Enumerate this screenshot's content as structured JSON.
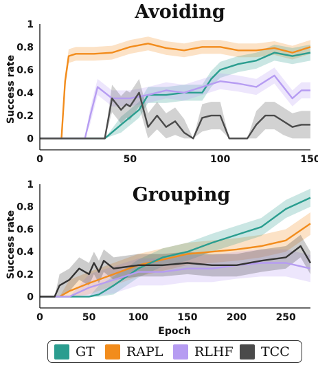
{
  "chart_data": [
    {
      "type": "line",
      "title": "Avoiding",
      "xlabel": "",
      "ylabel": "Success rate",
      "xlim": [
        0,
        150
      ],
      "ylim": [
        -0.1,
        1.0
      ],
      "xticks": [
        "0",
        "50",
        "100",
        "150"
      ],
      "yticks": [
        "0",
        "0.2",
        "0.4",
        "0.6",
        "0.8",
        "1"
      ],
      "grid": false,
      "series": [
        {
          "name": "RAPL",
          "color": "#f28c1c",
          "band": 0.06,
          "x": [
            0,
            12,
            14,
            16,
            20,
            30,
            40,
            50,
            60,
            70,
            80,
            90,
            100,
            110,
            120,
            130,
            140,
            150
          ],
          "y": [
            0,
            0,
            0.5,
            0.72,
            0.74,
            0.74,
            0.75,
            0.8,
            0.83,
            0.79,
            0.77,
            0.8,
            0.8,
            0.77,
            0.77,
            0.79,
            0.75,
            0.8
          ]
        },
        {
          "name": "GT",
          "color": "#2a9d8f",
          "band": 0.07,
          "x": [
            0,
            30,
            32,
            36,
            45,
            55,
            60,
            70,
            80,
            90,
            95,
            100,
            110,
            120,
            130,
            140,
            150
          ],
          "y": [
            0,
            0,
            0,
            0,
            0.12,
            0.25,
            0.38,
            0.38,
            0.4,
            0.4,
            0.52,
            0.6,
            0.65,
            0.68,
            0.75,
            0.72,
            0.75
          ]
        },
        {
          "name": "RLHF",
          "color": "#b69cf2",
          "band": 0.07,
          "x": [
            0,
            25,
            28,
            32,
            40,
            50,
            60,
            70,
            80,
            90,
            100,
            110,
            120,
            130,
            140,
            145,
            150
          ],
          "y": [
            0,
            0,
            0.2,
            0.45,
            0.35,
            0.35,
            0.38,
            0.42,
            0.4,
            0.45,
            0.5,
            0.48,
            0.45,
            0.55,
            0.35,
            0.42,
            0.42
          ]
        },
        {
          "name": "TCC",
          "color": "#4a4a4a",
          "band": 0.12,
          "x": [
            0,
            33,
            36,
            40,
            45,
            48,
            50,
            55,
            60,
            65,
            70,
            75,
            80,
            85,
            90,
            95,
            100,
            105,
            110,
            115,
            120,
            125,
            130,
            135,
            140,
            145,
            150
          ],
          "y": [
            0,
            0,
            0,
            0.35,
            0.25,
            0.3,
            0.28,
            0.4,
            0.1,
            0.2,
            0.1,
            0.15,
            0.05,
            0.0,
            0.18,
            0.2,
            0.2,
            0.0,
            0.0,
            0.0,
            0.12,
            0.2,
            0.2,
            0.15,
            0.1,
            0.12,
            0.12
          ]
        }
      ]
    },
    {
      "type": "line",
      "title": "Grouping",
      "xlabel": "Epoch",
      "ylabel": "Success rate",
      "xlim": [
        0,
        275
      ],
      "ylim": [
        -0.1,
        1.0
      ],
      "xticks": [
        "0",
        "50",
        "100",
        "150",
        "200",
        "250"
      ],
      "yticks": [
        "0",
        "0.2",
        "0.4",
        "0.6",
        "0.8",
        "1"
      ],
      "grid": false,
      "series": [
        {
          "name": "RAPL",
          "color": "#f28c1c",
          "band": 0.1,
          "x": [
            0,
            20,
            30,
            50,
            75,
            100,
            125,
            150,
            175,
            200,
            225,
            250,
            275
          ],
          "y": [
            0,
            0,
            0.05,
            0.12,
            0.2,
            0.28,
            0.33,
            0.38,
            0.4,
            0.42,
            0.45,
            0.5,
            0.65
          ]
        },
        {
          "name": "GT",
          "color": "#2a9d8f",
          "band": 0.08,
          "x": [
            0,
            50,
            60,
            75,
            100,
            125,
            150,
            175,
            200,
            225,
            250,
            275
          ],
          "y": [
            0,
            0,
            0.02,
            0.1,
            0.25,
            0.35,
            0.4,
            0.48,
            0.55,
            0.62,
            0.78,
            0.88
          ]
        },
        {
          "name": "RLHF",
          "color": "#b69cf2",
          "band": 0.12,
          "x": [
            0,
            30,
            50,
            75,
            100,
            125,
            150,
            175,
            200,
            225,
            250,
            275
          ],
          "y": [
            0,
            0,
            0.08,
            0.15,
            0.22,
            0.22,
            0.25,
            0.25,
            0.28,
            0.3,
            0.3,
            0.25
          ]
        },
        {
          "name": "TCC",
          "color": "#333333",
          "band": 0.1,
          "x": [
            0,
            15,
            20,
            30,
            40,
            50,
            55,
            60,
            65,
            75,
            100,
            125,
            150,
            175,
            200,
            225,
            250,
            265,
            275
          ],
          "y": [
            0,
            0,
            0.1,
            0.15,
            0.25,
            0.2,
            0.3,
            0.22,
            0.32,
            0.25,
            0.28,
            0.28,
            0.3,
            0.28,
            0.28,
            0.32,
            0.35,
            0.45,
            0.3
          ]
        }
      ]
    }
  ],
  "legend": [
    {
      "label": "GT",
      "color": "#2a9d8f"
    },
    {
      "label": "RAPL",
      "color": "#f28c1c"
    },
    {
      "label": "RLHF",
      "color": "#b69cf2"
    },
    {
      "label": "TCC",
      "color": "#4a4a4a"
    }
  ]
}
